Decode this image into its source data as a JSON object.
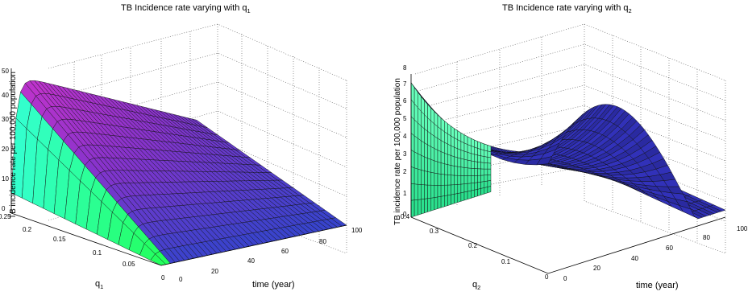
{
  "chart_data": [
    {
      "type": "surface",
      "title": "TB Incidence rate varying with q",
      "title_subscript": "1",
      "xlabel": "time (year)",
      "ylabel": "q",
      "ylabel_subscript": "1",
      "zlabel": "TB incidence rate per 100,000 population",
      "x_ticks": [
        "0",
        "20",
        "40",
        "60",
        "80",
        "100"
      ],
      "y_ticks": [
        "0",
        "0.05",
        "0.1",
        "0.15",
        "0.2",
        "0.25"
      ],
      "z_ticks": [
        "0",
        "10",
        "20",
        "30",
        "40",
        "50"
      ],
      "xlim": [
        0,
        100
      ],
      "ylim": [
        0,
        0.25
      ],
      "zlim": [
        0,
        50
      ],
      "grid": true,
      "series": [
        {
          "q": 0.25,
          "time": [
            0,
            1,
            2,
            4,
            8,
            20,
            100
          ],
          "values": [
            10,
            40,
            48,
            48,
            47,
            45,
            18
          ]
        },
        {
          "q": 0.15,
          "time": [
            0,
            1,
            2,
            4,
            8,
            20,
            100
          ],
          "values": [
            6,
            24,
            28,
            27,
            25,
            22,
            6
          ]
        },
        {
          "q": 0.05,
          "time": [
            0,
            1,
            2,
            4,
            8,
            20,
            100
          ],
          "values": [
            2,
            6,
            7,
            7,
            6,
            5,
            1
          ]
        },
        {
          "q": 0.0,
          "time": [
            0,
            1,
            2,
            4,
            8,
            20,
            100
          ],
          "values": [
            0,
            0,
            0,
            0,
            0,
            0,
            0
          ]
        }
      ],
      "colors": [
        "#33ff66",
        "#3399ff",
        "#4444cc",
        "#9933cc",
        "#cc33cc"
      ]
    },
    {
      "type": "surface",
      "title": "TB Incidence rate varying with q",
      "title_subscript": "2",
      "xlabel": "time (year)",
      "ylabel": "q",
      "ylabel_subscript": "2",
      "zlabel": "TB incidence rate per 100,000 population",
      "x_ticks": [
        "0",
        "20",
        "40",
        "60",
        "80",
        "100"
      ],
      "y_ticks": [
        "0",
        "0.1",
        "0.2",
        "0.3",
        "0.4"
      ],
      "z_ticks": [
        "0",
        "1",
        "2",
        "3",
        "4",
        "5",
        "6",
        "7",
        "8"
      ],
      "xlim": [
        0,
        100
      ],
      "ylim": [
        0,
        0.4
      ],
      "zlim": [
        0,
        8
      ],
      "grid": true,
      "series": [
        {
          "q": 0.4,
          "time": [
            0,
            20,
            40,
            60,
            80,
            100
          ],
          "values": [
            7.6,
            5.6,
            3.3,
            1.7,
            0.9,
            0.6
          ]
        },
        {
          "q": 0.2,
          "time": [
            0,
            20,
            40,
            60,
            80,
            100
          ],
          "values": [
            6.5,
            7.6,
            5.3,
            3.1,
            1.6,
            0.9
          ]
        },
        {
          "q": 0.0,
          "time": [
            0,
            20,
            40,
            60,
            80,
            100
          ],
          "values": [
            5.5,
            8.0,
            7.7,
            6.0,
            3.3,
            1.2
          ]
        }
      ],
      "colors": [
        "#33ff99",
        "#3333cc",
        "#2222aa"
      ]
    }
  ]
}
